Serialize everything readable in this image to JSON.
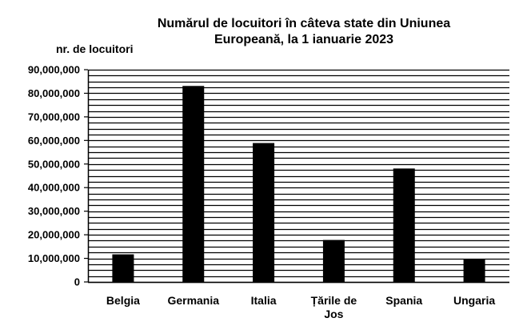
{
  "chart_data": {
    "type": "bar",
    "title": "Numărul de locuitori în câteva state din Uniunea Europeană, la 1 ianuarie 2023",
    "title_lines": [
      "Numărul de locuitori în câteva state din Uniunea",
      "Europeană, la 1 ianuarie 2023"
    ],
    "ylabel": "nr. de locuitori",
    "xlabel": "",
    "ylim": [
      0,
      90000000
    ],
    "gridline_step": 2500000,
    "yticks": [
      0,
      10000000,
      20000000,
      30000000,
      40000000,
      50000000,
      60000000,
      70000000,
      80000000,
      90000000
    ],
    "ytick_labels": [
      "0",
      "10,000,000",
      "20,000,000",
      "30,000,000",
      "40,000,000",
      "50,000,000",
      "60,000,000",
      "70,000,000",
      "80,000,000",
      "90,000,000"
    ],
    "categories": [
      "Belgia",
      "Germania",
      "Italia",
      "Țările de Jos",
      "Spania",
      "Ungaria"
    ],
    "category_label_lines": [
      [
        "Belgia"
      ],
      [
        "Germania"
      ],
      [
        "Italia"
      ],
      [
        "Țările de",
        "Jos"
      ],
      [
        "Spania"
      ],
      [
        "Ungaria"
      ]
    ],
    "values": [
      11700000,
      83100000,
      58900000,
      17800000,
      48100000,
      9600000
    ],
    "bar_color": "#000000",
    "grid_color": "#000000"
  }
}
